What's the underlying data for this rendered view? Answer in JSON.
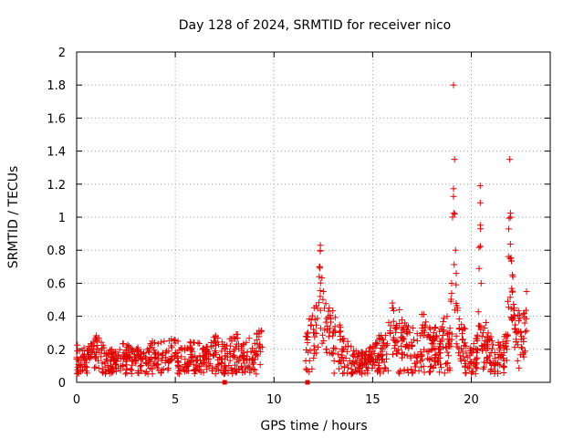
{
  "chart_data": {
    "type": "scatter",
    "title": "Day 128 of 2024, SRMTID for receiver nico",
    "xlabel": "GPS time / hours",
    "ylabel": "SRMTID / TECUs",
    "xlim": [
      0,
      24
    ],
    "ylim": [
      0,
      2
    ],
    "xticks": [
      0,
      5,
      10,
      15,
      20
    ],
    "xtick_labels": [
      "0",
      "5",
      "10",
      "15",
      "20"
    ],
    "yticks": [
      0,
      0.2,
      0.4,
      0.6,
      0.8,
      1,
      1.2,
      1.4,
      1.6,
      1.8,
      2
    ],
    "ytick_labels": [
      "0",
      "0.2",
      "0.4",
      "0.6",
      "0.8",
      "1",
      "1.2",
      "1.4",
      "1.6",
      "1.8",
      "2"
    ],
    "grid": true,
    "marker": "+",
    "color": "#e00000",
    "gaps": [
      [
        9.4,
        11.6
      ]
    ],
    "zero_markers": [
      7.5,
      11.7
    ],
    "series": [
      {
        "name": "SRMTID",
        "x": [
          0.0,
          0.5,
          1.0,
          1.5,
          2.0,
          2.5,
          3.0,
          3.5,
          4.0,
          4.5,
          5.0,
          5.5,
          6.0,
          6.5,
          7.0,
          7.5,
          8.0,
          8.5,
          9.0,
          9.3,
          11.7,
          12.0,
          12.3,
          12.35,
          12.5,
          12.8,
          13.0,
          13.5,
          14.0,
          14.5,
          15.0,
          15.5,
          15.9,
          16.0,
          16.5,
          17.0,
          17.5,
          18.0,
          18.5,
          18.9,
          19.0,
          19.05,
          19.1,
          19.15,
          19.2,
          19.3,
          19.5,
          19.8,
          20.0,
          20.3,
          20.45,
          20.5,
          20.6,
          20.8,
          21.0,
          21.5,
          21.8,
          21.95,
          22.0,
          22.2,
          22.5,
          22.8
        ],
        "y": [
          0.15,
          0.12,
          0.18,
          0.14,
          0.11,
          0.16,
          0.13,
          0.12,
          0.17,
          0.15,
          0.18,
          0.14,
          0.16,
          0.12,
          0.19,
          0.14,
          0.2,
          0.16,
          0.18,
          0.22,
          0.24,
          0.3,
          0.7,
          0.83,
          0.55,
          0.45,
          0.3,
          0.2,
          0.12,
          0.1,
          0.14,
          0.2,
          0.3,
          0.48,
          0.25,
          0.22,
          0.3,
          0.2,
          0.25,
          0.3,
          0.6,
          1.0,
          1.8,
          1.35,
          0.8,
          0.45,
          0.35,
          0.15,
          0.12,
          0.2,
          1.19,
          0.6,
          0.3,
          0.22,
          0.18,
          0.15,
          0.2,
          1.35,
          1.0,
          0.4,
          0.3,
          0.55
        ]
      }
    ]
  }
}
